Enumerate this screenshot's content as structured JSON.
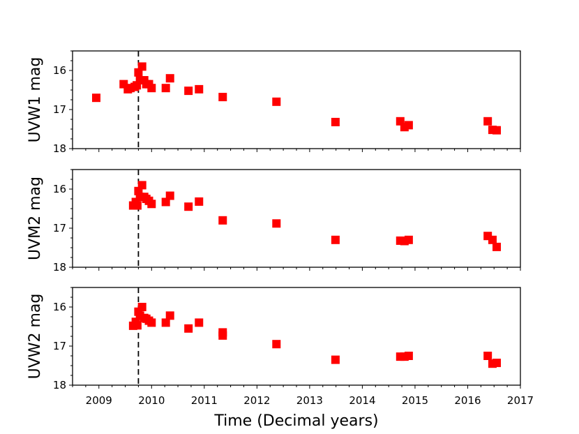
{
  "chart_data": {
    "type": "scatter",
    "xlabel": "Time (Decimal years)",
    "xlim": [
      2008.5,
      2017
    ],
    "xticks": [
      2009,
      2010,
      2011,
      2012,
      2013,
      2014,
      2015,
      2016,
      2017
    ],
    "yticks": [
      16,
      17,
      18
    ],
    "ylim": [
      18,
      15.5
    ],
    "y_inverted": true,
    "vline_x": 2009.75,
    "marker": "square",
    "marker_color": "#ff0000",
    "grid": false,
    "panels": [
      {
        "ylabel": "UVW1 mag",
        "x": [
          2008.95,
          2009.47,
          2009.55,
          2009.6,
          2009.68,
          2009.72,
          2009.75,
          2009.78,
          2009.82,
          2009.86,
          2009.9,
          2009.95,
          2010.0,
          2010.27,
          2010.35,
          2010.7,
          2010.9,
          2011.35,
          2012.37,
          2013.49,
          2014.72,
          2014.8,
          2014.88,
          2016.38,
          2016.47,
          2016.55
        ],
        "y": [
          16.7,
          16.35,
          16.48,
          16.45,
          16.42,
          16.38,
          16.05,
          16.25,
          15.9,
          16.25,
          16.35,
          16.35,
          16.45,
          16.45,
          16.2,
          16.52,
          16.48,
          16.68,
          16.8,
          17.32,
          17.3,
          17.45,
          17.4,
          17.3,
          17.52,
          17.53
        ]
      },
      {
        "ylabel": "UVM2 mag",
        "x": [
          2009.65,
          2009.7,
          2009.73,
          2009.75,
          2009.78,
          2009.82,
          2009.86,
          2009.9,
          2009.95,
          2010.0,
          2010.27,
          2010.35,
          2010.7,
          2010.9,
          2011.35,
          2012.37,
          2013.49,
          2014.72,
          2014.8,
          2014.88,
          2016.38,
          2016.47,
          2016.55
        ],
        "y": [
          16.42,
          16.33,
          16.42,
          16.05,
          16.2,
          15.9,
          16.2,
          16.25,
          16.3,
          16.38,
          16.33,
          16.17,
          16.45,
          16.32,
          16.8,
          16.88,
          17.3,
          17.32,
          17.33,
          17.3,
          17.2,
          17.3,
          17.48
        ]
      },
      {
        "ylabel": "UVW2 mag",
        "x": [
          2009.65,
          2009.7,
          2009.73,
          2009.75,
          2009.78,
          2009.82,
          2009.86,
          2009.9,
          2009.95,
          2010.0,
          2010.27,
          2010.35,
          2010.7,
          2010.9,
          2011.35,
          2011.35,
          2012.37,
          2013.49,
          2014.72,
          2014.8,
          2014.88,
          2016.38,
          2016.47,
          2016.55
        ],
        "y": [
          16.48,
          16.38,
          16.47,
          16.12,
          16.22,
          16.0,
          16.28,
          16.3,
          16.35,
          16.4,
          16.4,
          16.22,
          16.55,
          16.4,
          16.65,
          16.73,
          16.95,
          17.35,
          17.27,
          17.27,
          17.25,
          17.25,
          17.45,
          17.43
        ]
      }
    ]
  }
}
